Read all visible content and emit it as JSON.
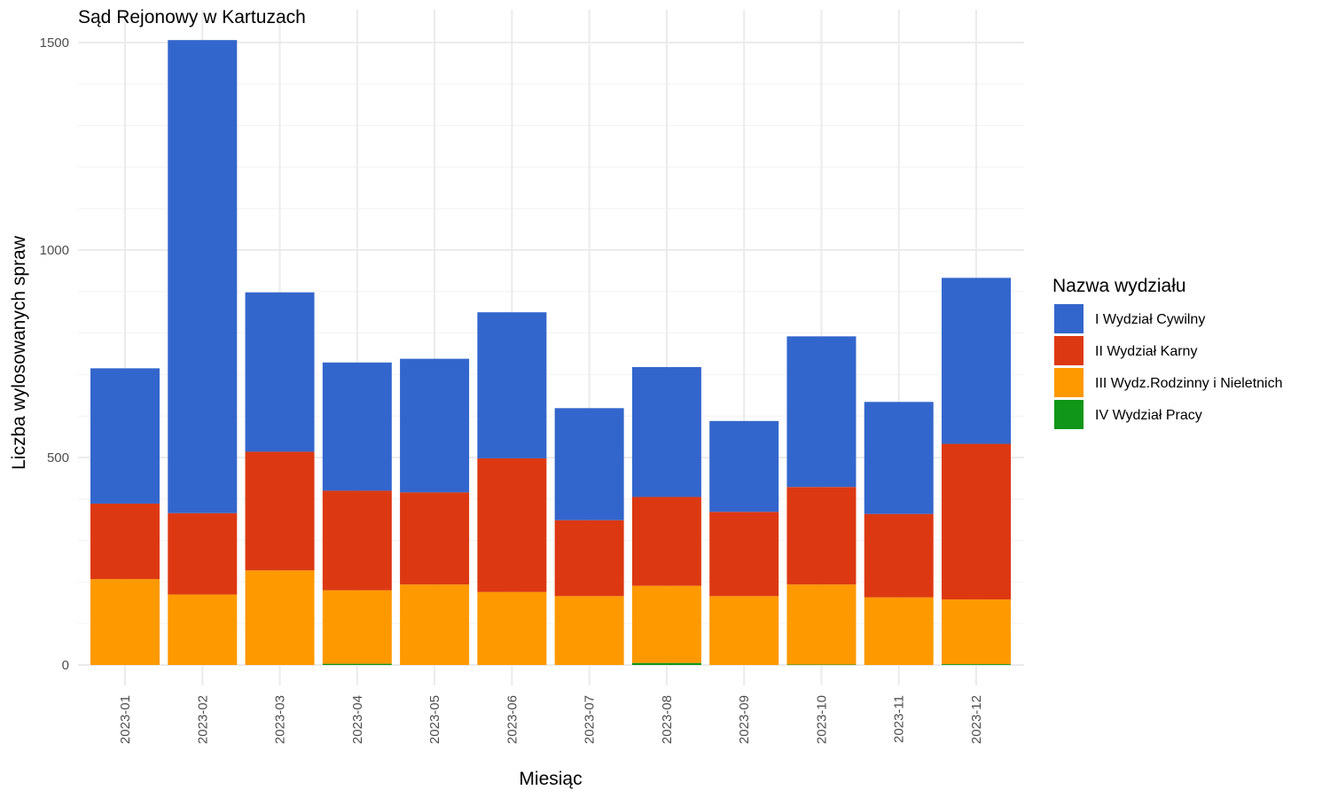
{
  "chart_data": {
    "type": "bar",
    "stacked": true,
    "title": "Sąd Rejonowy w Kartuzach",
    "xlabel": "Miesiąc",
    "ylabel": "Liczba wylosowanych spraw",
    "ylim": [
      -60,
      1535
    ],
    "yticks": [
      0,
      500,
      1000,
      1500
    ],
    "grid": true,
    "legend_position": "right",
    "legend_title": "Nazwa wydziału",
    "categories": [
      "2023-01",
      "2023-02",
      "2023-03",
      "2023-04",
      "2023-05",
      "2023-06",
      "2023-07",
      "2023-08",
      "2023-09",
      "2023-10",
      "2023-11",
      "2023-12"
    ],
    "series": [
      {
        "name": "IV Wydział Pracy",
        "color": "#109618",
        "values": [
          0,
          0,
          0,
          3,
          0,
          0,
          0,
          5,
          0,
          1,
          0,
          2
        ]
      },
      {
        "name": "III Wydz.Rodzinny i Nieletnich",
        "color": "#FF9900",
        "values": [
          207,
          170,
          228,
          177,
          194,
          176,
          166,
          186,
          166,
          193,
          163,
          156
        ]
      },
      {
        "name": "II Wydział Karny",
        "color": "#DC3912",
        "values": [
          182,
          196,
          286,
          240,
          222,
          322,
          183,
          214,
          203,
          235,
          201,
          375
        ]
      },
      {
        "name": "I Wydział Cywilny",
        "color": "#3366CC",
        "values": [
          326,
          1140,
          384,
          309,
          322,
          352,
          270,
          313,
          219,
          363,
          270,
          400
        ]
      }
    ],
    "legend_order": [
      "I Wydział Cywilny",
      "II Wydział Karny",
      "III Wydz.Rodzinny i Nieletnich",
      "IV Wydział Pracy"
    ]
  }
}
